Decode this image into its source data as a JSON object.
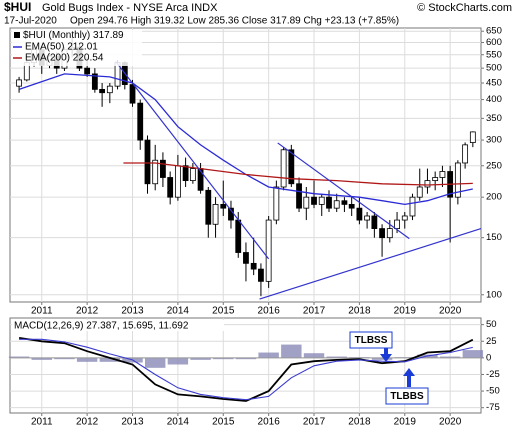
{
  "header": {
    "symbol": "$HUI",
    "title": "Gold Bugs Index - NYSE Arca  INDX",
    "source": "© StockCharts.com",
    "date": "17-Jul-2020",
    "quote": "Open 294.76  High 319.32  Low 285.36  Close 317.89  Chg +23.13 (+7.85%)"
  },
  "chart_data": [
    {
      "type": "candlestick",
      "name": "$HUI (Monthly) 317.89",
      "color": "#000000",
      "log_scale": true,
      "grid": true,
      "x": [
        2010.5,
        2010.67,
        2010.83,
        2011,
        2011.17,
        2011.33,
        2011.5,
        2011.67,
        2011.83,
        2012,
        2012.17,
        2012.33,
        2012.5,
        2012.67,
        2012.83,
        2013,
        2013.17,
        2013.33,
        2013.5,
        2013.67,
        2013.83,
        2014,
        2014.17,
        2014.33,
        2014.5,
        2014.67,
        2014.83,
        2015,
        2015.17,
        2015.33,
        2015.5,
        2015.67,
        2015.83,
        2016,
        2016.17,
        2016.33,
        2016.5,
        2016.67,
        2016.83,
        2017,
        2017.17,
        2017.33,
        2017.5,
        2017.67,
        2017.83,
        2018,
        2018.17,
        2018.33,
        2018.5,
        2018.67,
        2018.83,
        2019,
        2019.17,
        2019.33,
        2019.5,
        2019.67,
        2019.83,
        2020,
        2020.17,
        2020.33,
        2020.5
      ],
      "open": [
        440,
        460,
        520,
        570,
        510,
        545,
        500,
        570,
        580,
        500,
        480,
        430,
        420,
        440,
        520,
        445,
        390,
        300,
        220,
        260,
        230,
        200,
        250,
        225,
        245,
        210,
        165,
        190,
        185,
        170,
        135,
        125,
        120,
        110,
        170,
        215,
        280,
        220,
        185,
        200,
        190,
        200,
        185,
        195,
        190,
        185,
        170,
        175,
        160,
        150,
        160,
        170,
        175,
        200,
        215,
        225,
        230,
        240,
        200,
        255,
        294.76
      ],
      "high": [
        470,
        530,
        580,
        575,
        560,
        560,
        580,
        635,
        600,
        540,
        500,
        450,
        450,
        530,
        525,
        460,
        400,
        310,
        290,
        275,
        240,
        270,
        265,
        255,
        255,
        215,
        200,
        225,
        195,
        180,
        145,
        150,
        125,
        175,
        225,
        285,
        290,
        230,
        215,
        225,
        205,
        210,
        205,
        200,
        200,
        200,
        180,
        180,
        165,
        170,
        180,
        180,
        205,
        245,
        245,
        240,
        250,
        250,
        260,
        295,
        319.32
      ],
      "low": [
        420,
        455,
        505,
        480,
        500,
        480,
        490,
        540,
        490,
        470,
        420,
        380,
        390,
        430,
        430,
        380,
        280,
        205,
        210,
        215,
        190,
        195,
        215,
        220,
        205,
        150,
        150,
        175,
        160,
        130,
        110,
        115,
        99,
        105,
        165,
        210,
        215,
        180,
        170,
        185,
        175,
        180,
        180,
        180,
        175,
        165,
        160,
        150,
        131,
        145,
        155,
        160,
        170,
        195,
        205,
        210,
        215,
        145,
        190,
        245,
        285.36
      ],
      "close": [
        460,
        520,
        570,
        510,
        545,
        500,
        570,
        580,
        500,
        480,
        430,
        420,
        440,
        520,
        445,
        390,
        300,
        220,
        260,
        230,
        200,
        250,
        225,
        245,
        210,
        165,
        190,
        185,
        170,
        135,
        125,
        120,
        110,
        170,
        215,
        280,
        220,
        185,
        200,
        190,
        200,
        185,
        195,
        190,
        185,
        170,
        175,
        160,
        150,
        160,
        170,
        175,
        200,
        215,
        225,
        230,
        240,
        200,
        255,
        290,
        317.89
      ],
      "series": [
        {
          "name": "EMA(50) 212.01",
          "color": "#2b2bd6",
          "x": [
            2010.5,
            2011.5,
            2012.5,
            2013,
            2013.5,
            2014,
            2014.5,
            2015,
            2015.5,
            2016,
            2016.5,
            2017,
            2018,
            2018.5,
            2019,
            2019.5,
            2020,
            2020.5
          ],
          "values": [
            430,
            480,
            470,
            450,
            400,
            330,
            290,
            260,
            235,
            215,
            210,
            205,
            200,
            195,
            190,
            195,
            205,
            212.01
          ]
        },
        {
          "name": "EMA(200) 220.54",
          "color": "#b01818",
          "x": [
            2012.8,
            2013.5,
            2014.5,
            2015.5,
            2016.5,
            2017.5,
            2018.5,
            2019.5,
            2020.5
          ],
          "values": [
            255,
            255,
            245,
            235,
            228,
            225,
            220,
            218,
            220.54
          ]
        }
      ],
      "trendline_color": "#3333cc",
      "trendlines": [
        {
          "x": [
            2012.63,
            2016.0
          ],
          "y": [
            524,
            129
          ]
        },
        {
          "x": [
            2016.2,
            2019.1
          ],
          "y": [
            294,
            149
          ]
        },
        {
          "x": [
            2015.8,
            2020.68
          ],
          "y": [
            97,
            160
          ]
        }
      ],
      "xlim": [
        2010.3,
        2020.68
      ],
      "xticks": [
        2011,
        2012,
        2013,
        2014,
        2015,
        2016,
        2017,
        2018,
        2019,
        2020
      ],
      "ylim": [
        95,
        665
      ],
      "yticks": [
        100,
        150,
        200,
        250,
        300,
        350,
        400,
        450,
        500,
        550,
        600,
        650
      ]
    },
    {
      "type": "macd",
      "label": "MACD(12,26,9) 27.387, 15.695, 11.692",
      "grid": true,
      "x": [
        2010.5,
        2011,
        2011.5,
        2012,
        2012.5,
        2013,
        2013.5,
        2014,
        2014.5,
        2015,
        2015.5,
        2016,
        2016.5,
        2017,
        2017.5,
        2018,
        2018.5,
        2019,
        2019.5,
        2020,
        2020.5
      ],
      "series": [
        {
          "color": "#000000",
          "values": [
            30,
            25,
            22,
            10,
            0,
            -10,
            -40,
            -55,
            -58,
            -62,
            -65,
            -50,
            -10,
            -5,
            -3,
            -2,
            -8,
            -5,
            8,
            10,
            27.387
          ]
        },
        {
          "color": "#3b3bd0",
          "values": [
            28,
            28,
            24,
            16,
            6,
            -3,
            -25,
            -45,
            -55,
            -60,
            -63,
            -58,
            -30,
            -12,
            -5,
            -3,
            -5,
            -6,
            3,
            8,
            15.695
          ]
        }
      ],
      "histogram_color": "#8a8ab8",
      "histogram": [
        2,
        -3,
        -2,
        -6,
        -6,
        -7,
        -15,
        -10,
        -3,
        -2,
        -2,
        8,
        20,
        7,
        2,
        1,
        -3,
        1,
        5,
        2,
        11.692
      ],
      "annotations": [
        {
          "text": "TLBSS"
        },
        {
          "text": "TLBBS"
        }
      ],
      "xlim": [
        2010.3,
        2020.68
      ],
      "xticks": [
        2011,
        2012,
        2013,
        2014,
        2015,
        2016,
        2017,
        2018,
        2019,
        2020
      ],
      "ylim": [
        -83,
        60
      ],
      "yticks": [
        50,
        25,
        0,
        -25,
        -50,
        -75
      ]
    }
  ]
}
